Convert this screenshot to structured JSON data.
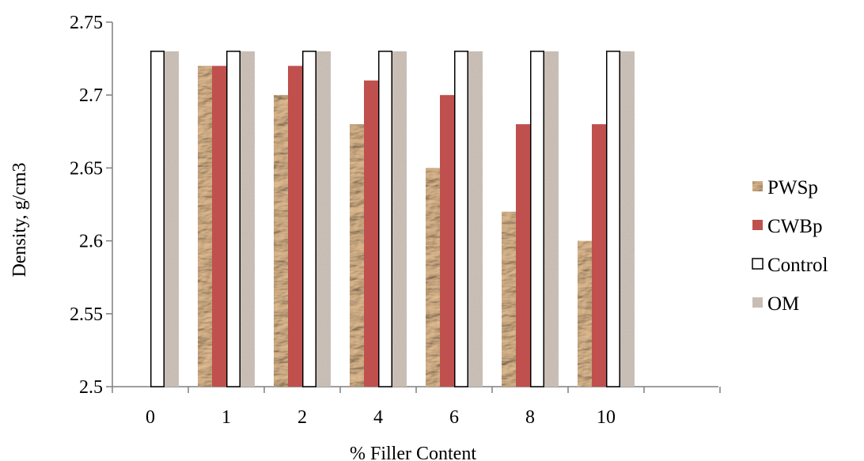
{
  "chart_data": {
    "type": "bar",
    "title": "",
    "xlabel": "% Filler Content",
    "ylabel": "Density, g/cm3",
    "categories": [
      "0",
      "1",
      "2",
      "4",
      "6",
      "8",
      "10"
    ],
    "ylim": [
      2.5,
      2.75
    ],
    "yticks": [
      "2.5",
      "2.55",
      "2.6",
      "2.65",
      "2.7",
      "2.75"
    ],
    "grid": false,
    "legend_position": "right",
    "series": [
      {
        "name": "PWSp",
        "color": "#d2a77c",
        "pattern": "crumpled-paper",
        "values": [
          null,
          2.72,
          2.7,
          2.68,
          2.65,
          2.62,
          2.6
        ]
      },
      {
        "name": "CWBp",
        "color": "#c0504d",
        "pattern": "solid",
        "values": [
          null,
          2.72,
          2.72,
          2.71,
          2.7,
          2.68,
          2.68
        ]
      },
      {
        "name": "Control",
        "color": "#ffffff",
        "pattern": "outline",
        "values": [
          2.73,
          2.73,
          2.73,
          2.73,
          2.73,
          2.73,
          2.73
        ]
      },
      {
        "name": "OM",
        "color": "#a49488",
        "pattern": "granite",
        "values": [
          2.73,
          2.73,
          2.73,
          2.73,
          2.73,
          2.73,
          2.73
        ]
      }
    ]
  }
}
